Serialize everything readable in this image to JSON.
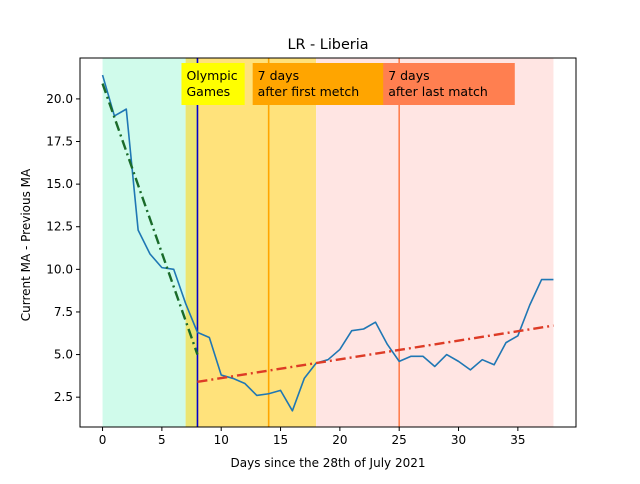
{
  "chart_data": {
    "type": "line",
    "title": "LR - Liberia",
    "xlabel": "Days since the 28th of July 2021",
    "ylabel": "Current MA - Previous MA",
    "xlim": [
      -1.9,
      39.9
    ],
    "ylim": [
      0.75,
      22.4
    ],
    "xticks": [
      0,
      5,
      10,
      15,
      20,
      25,
      30,
      35
    ],
    "yticks": [
      2.5,
      5.0,
      7.5,
      10.0,
      12.5,
      15.0,
      17.5,
      20.0
    ],
    "ytick_labels": [
      "2.5",
      "5.0",
      "7.5",
      "10.0",
      "12.5",
      "15.0",
      "17.5",
      "20.0"
    ],
    "grid": false,
    "regions": [
      {
        "x0": 0,
        "x1": 7,
        "color": "#d0fbeb"
      },
      {
        "x0": 7,
        "x1": 8,
        "color": "#ece572"
      },
      {
        "x0": 8,
        "x1": 18,
        "color": "#ffe27b"
      },
      {
        "x0": 18,
        "x1": 38,
        "color": "#ffe5e3"
      }
    ],
    "vlines": [
      {
        "x": 8,
        "color": "#0000cc"
      },
      {
        "x": 14,
        "color": "#ffa500"
      },
      {
        "x": 25,
        "color": "#ff7f50"
      }
    ],
    "annotations": [
      {
        "x": 8,
        "lines": [
          "Olympic",
          "Games"
        ],
        "bg": "#ffff00"
      },
      {
        "x": 14,
        "lines": [
          "7 days",
          "after first metch"
        ],
        "bg": "#ffa500"
      },
      {
        "x": 25,
        "lines": [
          "7 days",
          "after last match"
        ],
        "bg": "#ff7f50"
      }
    ],
    "series": [
      {
        "color": "#1f77b4",
        "style": "solid",
        "x": [
          0,
          1,
          2,
          3,
          4,
          5,
          6,
          7,
          8,
          9,
          10,
          11,
          12,
          13,
          14,
          15,
          16,
          17,
          18,
          19,
          20,
          21,
          22,
          23,
          24,
          25,
          26,
          27,
          28,
          29,
          30,
          31,
          32,
          33,
          34,
          35,
          36,
          37,
          38
        ],
        "y": [
          21.4,
          19.0,
          19.4,
          12.3,
          10.9,
          10.1,
          10.0,
          8.0,
          6.3,
          6.0,
          3.8,
          3.6,
          3.3,
          2.6,
          2.7,
          2.9,
          1.7,
          3.6,
          4.5,
          4.7,
          5.3,
          6.4,
          6.5,
          6.9,
          5.6,
          4.6,
          4.9,
          4.9,
          4.3,
          5.0,
          4.6,
          4.1,
          4.7,
          4.4,
          5.7,
          6.1,
          7.9,
          9.4,
          9.4
        ]
      },
      {
        "color": "#1a6b2a",
        "style": "dashdot",
        "x": [
          0,
          8
        ],
        "y": [
          20.9,
          5.0
        ]
      },
      {
        "color": "#dd3b26",
        "style": "dashdot",
        "x": [
          8,
          38
        ],
        "y": [
          3.4,
          6.7
        ]
      }
    ]
  }
}
